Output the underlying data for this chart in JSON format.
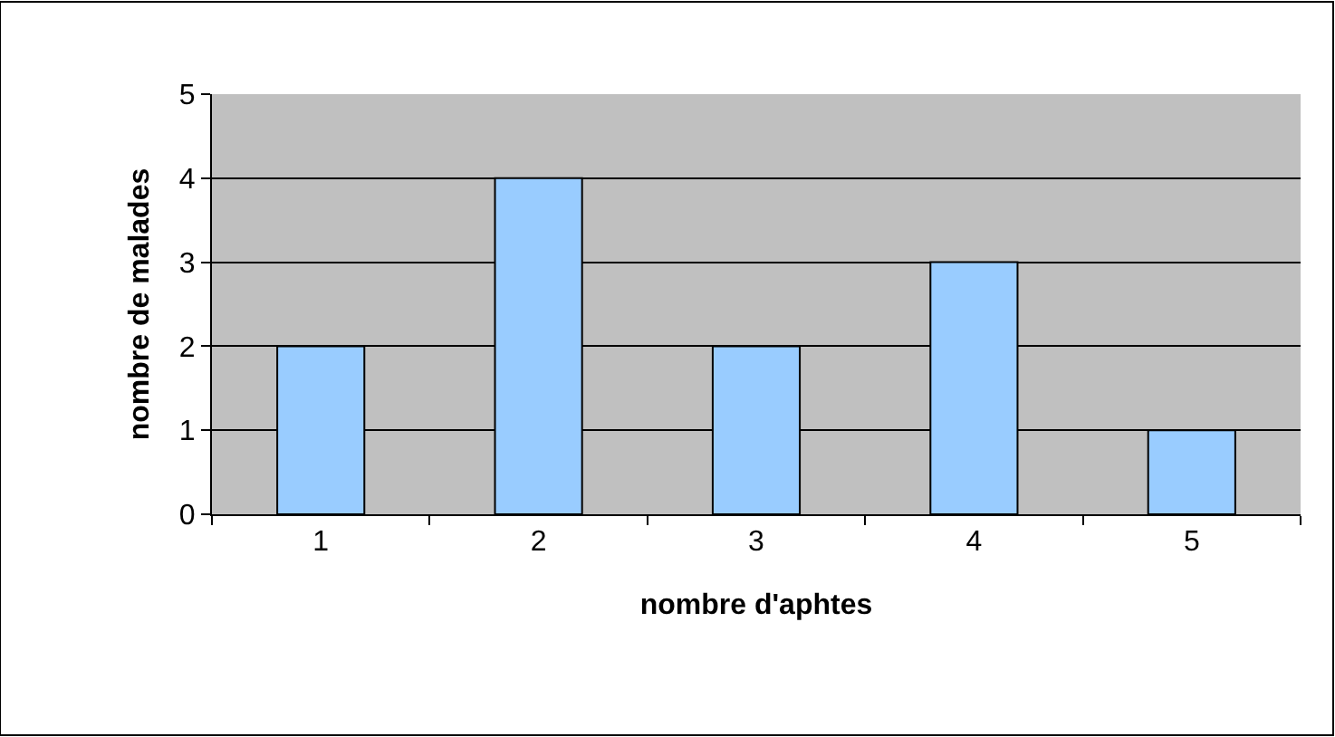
{
  "chart_data": {
    "type": "bar",
    "xlabel": "nombre d'aphtes",
    "ylabel": "nombre de malades",
    "categories": [
      "1",
      "2",
      "3",
      "4",
      "5"
    ],
    "values": [
      2,
      4,
      2,
      3,
      1
    ],
    "color": "#99ccff",
    "ylim": [
      0,
      5
    ],
    "yticks": [
      0,
      1,
      2,
      3,
      4,
      5
    ],
    "grid": "y"
  }
}
